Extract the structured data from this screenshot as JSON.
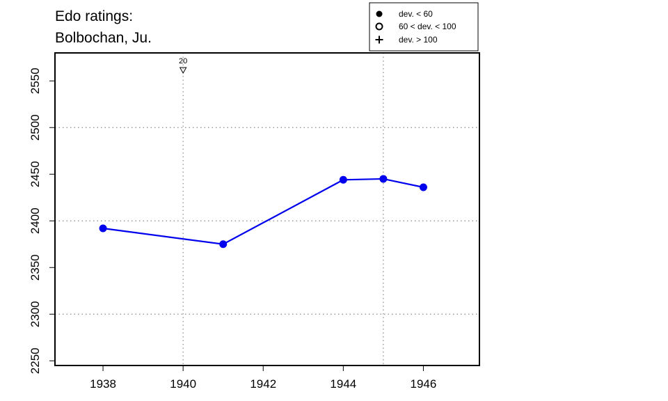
{
  "chart_data": {
    "type": "line",
    "title_lines": [
      "Edo ratings:",
      "Bolbochan, Ju."
    ],
    "xlabel": "",
    "ylabel": "",
    "xlim": [
      1936.8,
      1947.4
    ],
    "ylim": [
      2245,
      2580
    ],
    "x_ticks": [
      1938,
      1940,
      1942,
      1944,
      1946
    ],
    "y_ticks": [
      2250,
      2300,
      2350,
      2400,
      2450,
      2500,
      2550
    ],
    "grid": {
      "horizontal": [
        2300,
        2400,
        2500
      ],
      "vertical": [
        1940,
        1945
      ],
      "style": "dotted"
    },
    "line_color": "#0000ee",
    "marker_color": "#0000ee",
    "series": [
      {
        "x": [
          1938,
          1941,
          1944,
          1945,
          1946
        ],
        "y": [
          2392,
          2375,
          2444,
          2445,
          2436
        ],
        "marker": [
          "filled",
          "filled",
          "filled",
          "filled",
          "filled"
        ]
      }
    ],
    "annotations": [
      {
        "x": 1940,
        "label": "20",
        "symbol": "down-triangle"
      }
    ],
    "legend": {
      "position": "top-right",
      "entries": [
        {
          "symbol": "filled-circle",
          "label": "dev. < 60"
        },
        {
          "symbol": "open-circle",
          "label": "60 < dev. < 100"
        },
        {
          "symbol": "plus",
          "label": "dev. > 100"
        }
      ]
    }
  }
}
